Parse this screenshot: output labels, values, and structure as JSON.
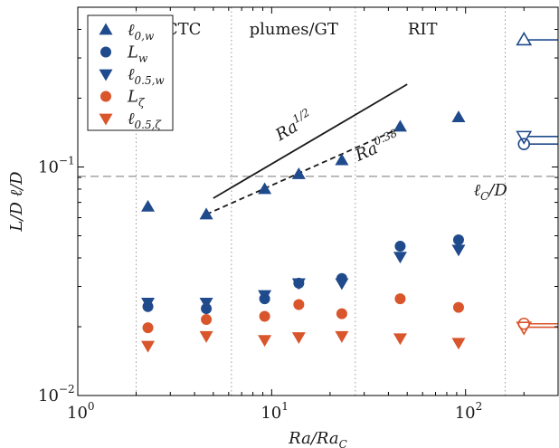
{
  "chart_data": {
    "type": "scatter",
    "title": "",
    "xlabel": "Ra/Ra_C",
    "ylabel": "L/D   ℓ/D",
    "xscale": "log",
    "yscale": "log",
    "xlim": [
      1,
      300
    ],
    "ylim": [
      0.01,
      0.5
    ],
    "xticks": [
      {
        "value": 1,
        "base": "10",
        "exp": "0"
      },
      {
        "value": 10,
        "base": "10",
        "exp": "1"
      },
      {
        "value": 100,
        "base": "10",
        "exp": "2"
      }
    ],
    "yticks": [
      {
        "value": 0.01,
        "base": "10",
        "exp": "−2"
      },
      {
        "value": 0.1,
        "base": "10",
        "exp": "−1"
      }
    ],
    "colors": {
      "blue": "#1f4a8c",
      "orange": "#d9552b",
      "grid": "#999999",
      "hline": "#aaaaaa",
      "line": "#1a1a1a"
    },
    "legend_position": "top-left",
    "series": [
      {
        "name": "ℓ_{0,w}",
        "marker": "triangle-up",
        "color": "#1f4a8c",
        "x": [
          2.3,
          4.6,
          9.2,
          13.8,
          23,
          46,
          92
        ],
        "y": [
          0.067,
          0.062,
          0.08,
          0.093,
          0.107,
          0.15,
          0.165
        ]
      },
      {
        "name": "L_w",
        "marker": "circle",
        "color": "#1f4a8c",
        "x": [
          2.3,
          4.6,
          9.2,
          13.8,
          23,
          46,
          92
        ],
        "y": [
          0.0245,
          0.024,
          0.0265,
          0.031,
          0.0325,
          0.045,
          0.048
        ]
      },
      {
        "name": "ℓ_{0.5,w}",
        "marker": "triangle-down",
        "color": "#1f4a8c",
        "x": [
          2.3,
          4.6,
          9.2,
          13.8,
          23,
          46,
          92
        ],
        "y": [
          0.0255,
          0.0255,
          0.0275,
          0.031,
          0.031,
          0.0405,
          0.0435
        ]
      },
      {
        "name": "L_ζ",
        "marker": "circle",
        "color": "#d9552b",
        "x": [
          2.3,
          4.6,
          9.2,
          13.8,
          23,
          46,
          92
        ],
        "y": [
          0.0198,
          0.0215,
          0.0222,
          0.025,
          0.0228,
          0.0265,
          0.0243
        ]
      },
      {
        "name": "ℓ_{0.5,ζ}",
        "marker": "triangle-down",
        "color": "#d9552b",
        "x": [
          2.3,
          4.6,
          9.2,
          13.8,
          23,
          46,
          92
        ],
        "y": [
          0.0165,
          0.0182,
          0.0175,
          0.018,
          0.0182,
          0.0178,
          0.017
        ]
      }
    ],
    "regime_boundaries": [
      2,
      6.2,
      27,
      160
    ],
    "regime_labels": [
      {
        "text": "CTC",
        "x": 3.5
      },
      {
        "text": "plumes/GT",
        "x": 13
      },
      {
        "text": "RIT",
        "x": 60
      }
    ],
    "reference_hline": {
      "y": 0.091,
      "label_base": "ℓ",
      "label_sub": "C",
      "label_tail": "/D",
      "label_x": 110,
      "label_y": 0.075
    },
    "fit_lines": [
      {
        "label_base": "Ra",
        "label_exp": "1/2",
        "style": "solid",
        "x": [
          5,
          50
        ],
        "y": [
          0.073,
          0.23
        ],
        "label_x": 11,
        "label_y": 0.13
      },
      {
        "label_base": "Ra",
        "label_exp": "0.38",
        "style": "dashed",
        "x": [
          4.6,
          46
        ],
        "y": [
          0.062,
          0.148
        ],
        "label_x": 28,
        "label_y": 0.106
      }
    ],
    "side_markers": [
      {
        "marker": "triangle-up",
        "color": "#1f4a8c",
        "y": 0.36
      },
      {
        "marker": "triangle-down",
        "color": "#1f4a8c",
        "y": 0.136
      },
      {
        "marker": "circle",
        "color": "#1f4a8c",
        "y": 0.126
      },
      {
        "marker": "circle",
        "color": "#d9552b",
        "y": 0.0206
      },
      {
        "marker": "triangle-down",
        "color": "#d9552b",
        "y": 0.0199
      }
    ],
    "side_marker_x": 200
  }
}
